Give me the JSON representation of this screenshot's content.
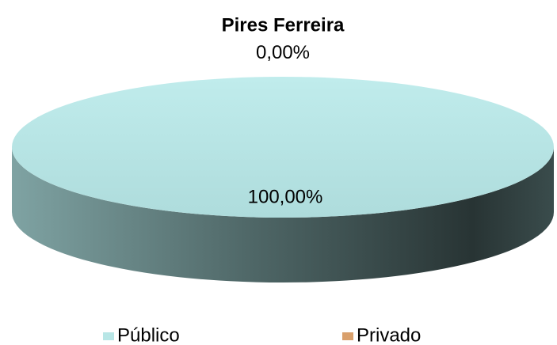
{
  "chart_data": {
    "type": "pie",
    "title": "Pires Ferreira",
    "categories": [
      "Público",
      "Privado"
    ],
    "values": [
      100,
      0
    ],
    "value_labels": [
      "100,00%",
      "0,00%"
    ],
    "colors": [
      "#b8e6e6",
      "#d9a06c"
    ],
    "legend": "bottom"
  }
}
